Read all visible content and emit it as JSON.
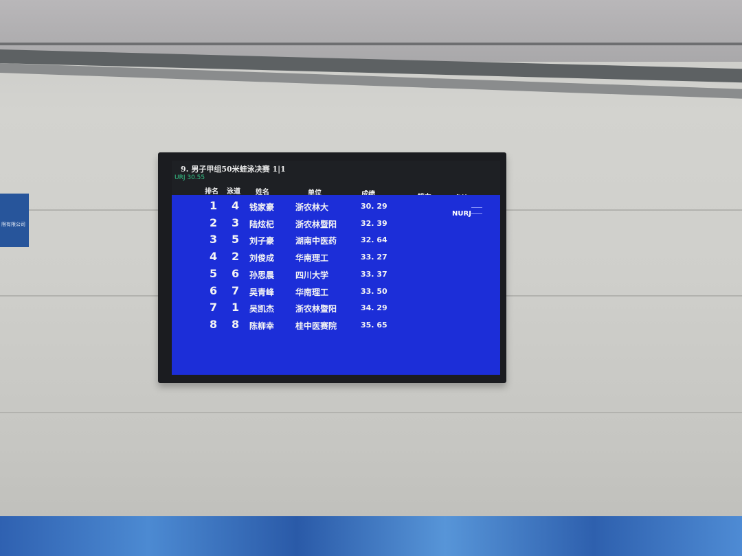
{
  "scoreboard": {
    "title": "9. 男子甲组50米蛙泳决赛 1|1",
    "record": "URJ 30.55",
    "headers": {
      "rank": "排名",
      "lane": "泳道",
      "name": "姓名",
      "unit": "单位",
      "result": "成绩",
      "relay": "接力",
      "note": "备注"
    },
    "rows": [
      {
        "rank": "1",
        "lane": "4",
        "name": "钱家豪",
        "unit": "浙农林大",
        "result": "30. 29",
        "note": "NURJ"
      },
      {
        "rank": "2",
        "lane": "3",
        "name": "陆炫杞",
        "unit": "浙农林暨阳",
        "result": "32. 39"
      },
      {
        "rank": "3",
        "lane": "5",
        "name": "刘子豪",
        "unit": "湖南中医药",
        "result": "32. 64"
      },
      {
        "rank": "4",
        "lane": "2",
        "name": "刘俊成",
        "unit": "华南理工",
        "result": "33. 27"
      },
      {
        "rank": "5",
        "lane": "6",
        "name": "孙思晨",
        "unit": "四川大学",
        "result": "33. 37"
      },
      {
        "rank": "6",
        "lane": "7",
        "name": "吴青峰",
        "unit": "华南理工",
        "result": "33. 50"
      },
      {
        "rank": "7",
        "lane": "1",
        "name": "吴凯杰",
        "unit": "浙农林暨阳",
        "result": "34. 29"
      },
      {
        "rank": "8",
        "lane": "8",
        "name": "陈柳幸",
        "unit": "桂中医赛院",
        "result": "35. 65"
      }
    ],
    "colors": {
      "screen_blue": "#1c2ed8",
      "record_green": "#37c98b"
    }
  },
  "wall_sign": {
    "text": "限有限公司"
  }
}
